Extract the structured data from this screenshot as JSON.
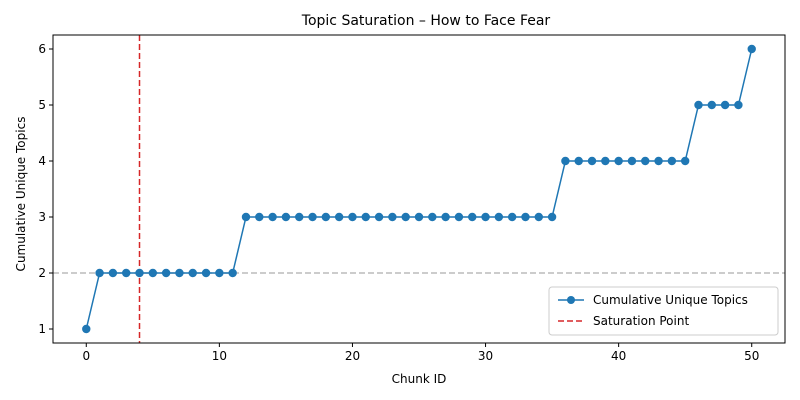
{
  "chart_data": {
    "type": "line",
    "title": "Topic Saturation – How to Face Fear",
    "xlabel": "Chunk ID",
    "ylabel": "Cumulative Unique Topics",
    "xlim": [
      -2.5,
      52.5
    ],
    "ylim": [
      0.75,
      6.25
    ],
    "xticks": [
      0,
      10,
      20,
      30,
      40,
      50
    ],
    "yticks": [
      1,
      2,
      3,
      4,
      5,
      6
    ],
    "grid": false,
    "legend_position": "lower-right",
    "series": [
      {
        "name": "Cumulative Unique Topics",
        "color": "#1f77b4",
        "marker": "circle",
        "x": [
          0,
          1,
          2,
          3,
          4,
          5,
          6,
          7,
          8,
          9,
          10,
          11,
          12,
          13,
          14,
          15,
          16,
          17,
          18,
          19,
          20,
          21,
          22,
          23,
          24,
          25,
          26,
          27,
          28,
          29,
          30,
          31,
          32,
          33,
          34,
          35,
          36,
          37,
          38,
          39,
          40,
          41,
          42,
          43,
          44,
          45,
          46,
          47,
          48,
          49,
          50
        ],
        "y": [
          1,
          2,
          2,
          2,
          2,
          2,
          2,
          2,
          2,
          2,
          2,
          2,
          3,
          3,
          3,
          3,
          3,
          3,
          3,
          3,
          3,
          3,
          3,
          3,
          3,
          3,
          3,
          3,
          3,
          3,
          3,
          3,
          3,
          3,
          3,
          3,
          4,
          4,
          4,
          4,
          4,
          4,
          4,
          4,
          4,
          4,
          5,
          5,
          5,
          5,
          6
        ]
      }
    ],
    "reference_lines": [
      {
        "name": "Saturation Point",
        "orientation": "vertical",
        "value": 4,
        "color": "#d62728",
        "style": "dashed"
      },
      {
        "orientation": "horizontal",
        "value": 2,
        "color": "#bbbbbb",
        "style": "dashed"
      }
    ]
  }
}
